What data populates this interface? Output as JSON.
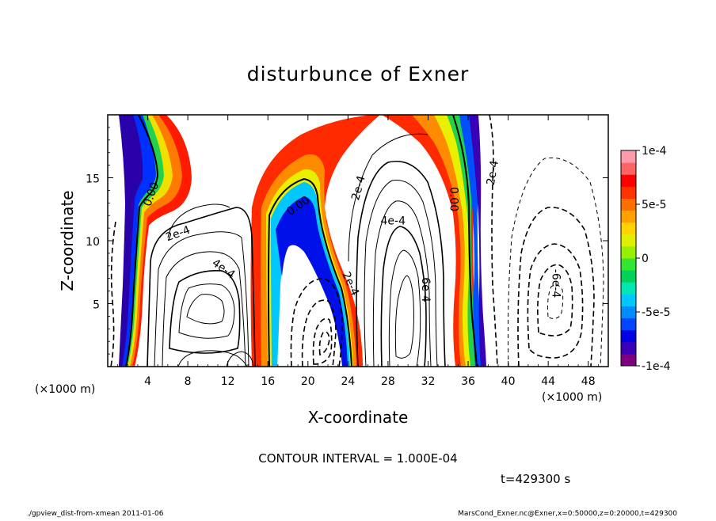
{
  "chart_data": {
    "type": "contour",
    "title": "disturbunce of Exner",
    "xlabel": "X-coordinate",
    "ylabel": "Z-coordinate",
    "x_unit_label": "(×1000 m)",
    "z_unit_label": "(×1000 m)",
    "xlim": [
      0,
      50
    ],
    "ylim": [
      0,
      20
    ],
    "x_ticks": [
      4,
      8,
      12,
      16,
      20,
      24,
      28,
      32,
      36,
      40,
      44,
      48
    ],
    "y_ticks": [
      5,
      10,
      15
    ],
    "colorbar": {
      "ticks": [
        "1e-4",
        "5e-5",
        "0",
        "-5e-5",
        "-1e-4"
      ],
      "range": [
        -0.0001,
        0.0001
      ],
      "colors": [
        "#7f007f",
        "#3a00b8",
        "#0000e6",
        "#0046ff",
        "#008cff",
        "#00c8ff",
        "#00e6b4",
        "#00d25a",
        "#32e632",
        "#96f000",
        "#dcf000",
        "#ffd200",
        "#ffa000",
        "#ff6e00",
        "#ff3200",
        "#ff0000",
        "#ff6464",
        "#ff9aaa"
      ]
    },
    "contour_labels": [
      {
        "text": "0.00",
        "x": 4.3,
        "z": 13.7,
        "rotate": -70
      },
      {
        "text": "0.00",
        "x": 19.0,
        "z": 12.8,
        "rotate": -35
      },
      {
        "text": "0.00",
        "x": 34.6,
        "z": 13.3,
        "rotate": 90
      },
      {
        "text": "2e-4",
        "x": 7.0,
        "z": 10.6,
        "rotate": -20
      },
      {
        "text": "4e-4",
        "x": 11.6,
        "z": 7.8,
        "rotate": 35
      },
      {
        "text": "2e-4",
        "x": 25.0,
        "z": 14.2,
        "rotate": -75
      },
      {
        "text": "4e-4",
        "x": 28.5,
        "z": 11.6,
        "rotate": 0
      },
      {
        "text": "2e-4",
        "x": 24.3,
        "z": 6.6,
        "rotate": 65
      },
      {
        "text": "6e-4",
        "x": 31.8,
        "z": 6.1,
        "rotate": 90
      },
      {
        "text": "2e-4",
        "x": 38.4,
        "z": 15.4,
        "rotate": -80
      },
      {
        "text": "-6e-4",
        "x": 44.8,
        "z": 6.6,
        "rotate": 90
      }
    ],
    "contour_interval_text": "CONTOUR INTERVAL = 1.000E-04",
    "time_text": "t=429300 s"
  },
  "footer": {
    "left": "./gpview_dist-from-xmean  2011-01-06",
    "right": "MarsCond_Exner.nc@Exner,x=0:50000,z=0:20000,t=429300"
  }
}
